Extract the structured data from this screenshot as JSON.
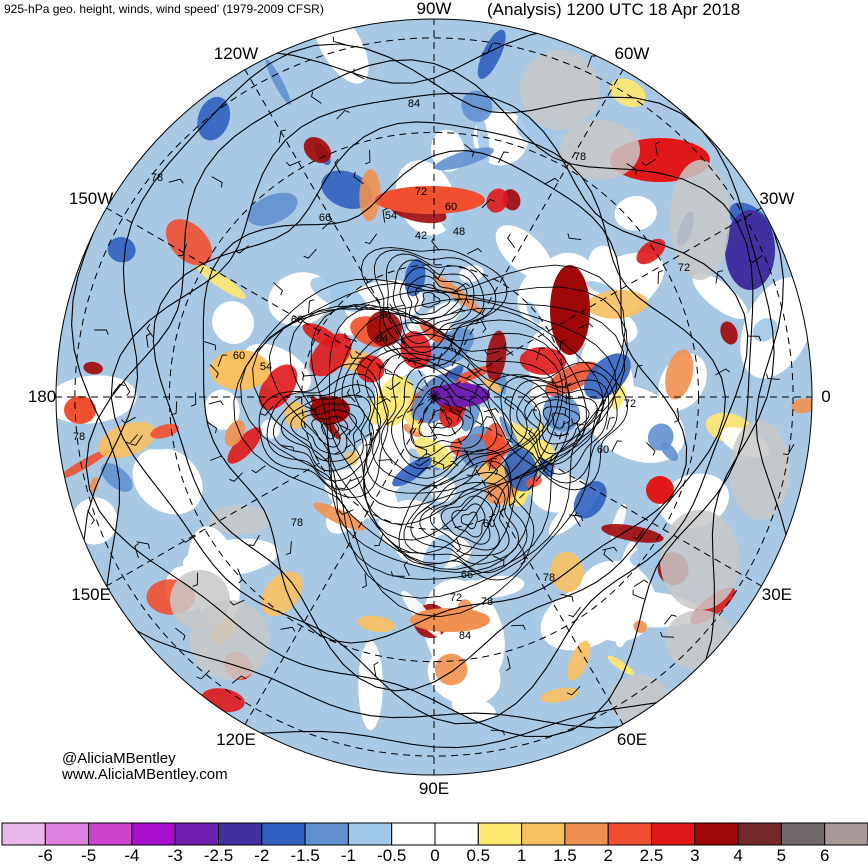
{
  "header": {
    "title_left": "925-hPa geo. height, winds, wind speed' (1979-2009 CFSR)",
    "title_right": "(Analysis) 1200 UTC 18 Apr 2018"
  },
  "map": {
    "projection": "north-polar-stereographic",
    "longitude_labels": [
      {
        "text": "90W",
        "lon": -90
      },
      {
        "text": "60W",
        "lon": -60
      },
      {
        "text": "30W",
        "lon": -30
      },
      {
        "text": "0",
        "lon": 0
      },
      {
        "text": "30E",
        "lon": 30
      },
      {
        "text": "60E",
        "lon": 60
      },
      {
        "text": "90E",
        "lon": 90
      },
      {
        "text": "120E",
        "lon": 120
      },
      {
        "text": "150E",
        "lon": 150
      },
      {
        "text": "180",
        "lon": 180
      },
      {
        "text": "150W",
        "lon": -150
      },
      {
        "text": "120W",
        "lon": -120
      }
    ],
    "contour_labels": [
      "84",
      "78",
      "72",
      "66",
      "60",
      "54",
      "48",
      "42",
      "84",
      "84",
      "78",
      "72",
      "66",
      "60",
      "54",
      "60",
      "66",
      "72",
      "78",
      "84",
      "72",
      "60",
      "78",
      "78",
      "78"
    ],
    "colors": {
      "land": "#c8c8c8",
      "contour": "#000000",
      "boundary": "#555555"
    }
  },
  "credits": {
    "handle": "@AliciaMBentley",
    "website": "www.AliciaMBentley.com"
  },
  "colorbar": {
    "colors": [
      "#e8b8e8",
      "#e080e0",
      "#cc44cc",
      "#aa10d0",
      "#7020b0",
      "#4030a0",
      "#3060c0",
      "#6090d0",
      "#a0c8e8",
      "#ffffff",
      "#ffffff",
      "#ffe870",
      "#f8c060",
      "#f09050",
      "#f05030",
      "#e01818",
      "#a00808",
      "#702828",
      "#706868",
      "#a89898"
    ],
    "labels": [
      "-6",
      "-5",
      "-4",
      "-3",
      "-2.5",
      "-2",
      "-1.5",
      "-1",
      "-0.5",
      "0",
      "0.5",
      "1",
      "1.5",
      "2",
      "2.5",
      "3",
      "4",
      "5",
      "6"
    ]
  }
}
